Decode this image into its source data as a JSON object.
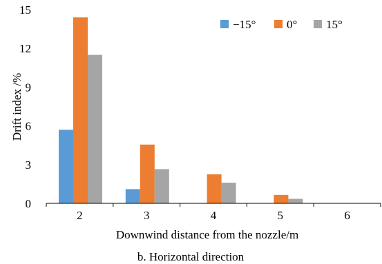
{
  "chart_data": {
    "type": "bar",
    "categories": [
      "2",
      "3",
      "4",
      "5",
      "6"
    ],
    "series": [
      {
        "name": "−15°",
        "color": "#5b9bd5",
        "values": [
          5.7,
          1.1,
          0,
          0,
          0
        ]
      },
      {
        "name": "0°",
        "color": "#ed7d31",
        "values": [
          14.4,
          4.55,
          2.25,
          0.65,
          0
        ]
      },
      {
        "name": "15°",
        "color": "#a5a5a5",
        "values": [
          11.5,
          2.65,
          1.6,
          0.35,
          0
        ]
      }
    ],
    "yticks": [
      "0",
      "3",
      "6",
      "9",
      "12",
      "15"
    ],
    "ylim": [
      0,
      15
    ],
    "xlabel": "Downwind distance from the nozzle/m",
    "ylabel": "Drift index /%",
    "legend_position": "top-right",
    "grid": false
  },
  "caption": "b. Horizontal direction"
}
